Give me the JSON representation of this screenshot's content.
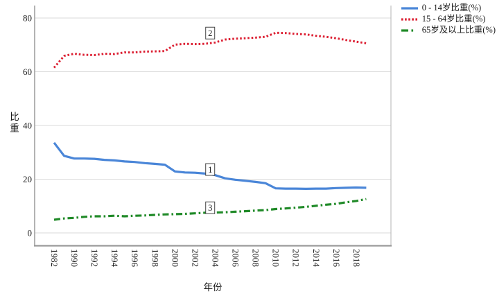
{
  "chart_data": {
    "type": "line",
    "title": "",
    "xlabel": "年份",
    "ylabel": "比重",
    "ylim": [
      0,
      80
    ],
    "grid": "horizontal",
    "legend_position": "top-right",
    "y_tick_labels": [
      "0",
      "20",
      "40",
      "60",
      "80"
    ],
    "y_ticks": [
      0,
      20,
      40,
      60,
      80
    ],
    "x_categories": [
      1982,
      1987,
      1990,
      1991,
      1992,
      1993,
      1994,
      1995,
      1996,
      1997,
      1998,
      1999,
      2000,
      2001,
      2002,
      2003,
      2004,
      2005,
      2006,
      2007,
      2008,
      2009,
      2010,
      2011,
      2012,
      2013,
      2014,
      2015,
      2016,
      2017,
      2018,
      2019
    ],
    "x_tick_labels": [
      "1982",
      "1990",
      "1992",
      "1994",
      "1996",
      "1998",
      "2000",
      "2002",
      "2004",
      "2006",
      "2008",
      "2010",
      "2012",
      "2014",
      "2016",
      "2018"
    ],
    "series": [
      {
        "name": "0 - 14岁比重(%)",
        "marker_label": "1",
        "color": "#4a86d8",
        "style": "solid",
        "values": [
          33.6,
          28.7,
          27.7,
          27.7,
          27.6,
          27.2,
          27.0,
          26.6,
          26.4,
          26.0,
          25.7,
          25.4,
          22.9,
          22.5,
          22.4,
          22.1,
          21.5,
          20.3,
          19.8,
          19.4,
          19.0,
          18.5,
          16.6,
          16.5,
          16.5,
          16.4,
          16.5,
          16.5,
          16.7,
          16.8,
          16.9,
          16.8
        ]
      },
      {
        "name": "15 - 64岁比重(%)",
        "marker_label": "2",
        "color": "#dc2033",
        "style": "dotted",
        "values": [
          61.5,
          65.9,
          66.7,
          66.3,
          66.2,
          66.7,
          66.6,
          67.2,
          67.2,
          67.5,
          67.6,
          67.7,
          70.1,
          70.4,
          70.3,
          70.4,
          70.9,
          72.0,
          72.3,
          72.5,
          72.7,
          73.0,
          74.5,
          74.4,
          74.1,
          73.9,
          73.4,
          73.0,
          72.5,
          71.8,
          71.2,
          70.6
        ]
      },
      {
        "name": "65岁及以上比重(%)",
        "marker_label": "3",
        "color": "#208a28",
        "style": "dash-dot",
        "values": [
          4.9,
          5.4,
          5.6,
          6.0,
          6.2,
          6.2,
          6.4,
          6.2,
          6.4,
          6.5,
          6.7,
          6.9,
          7.0,
          7.1,
          7.3,
          7.5,
          7.6,
          7.7,
          7.9,
          8.1,
          8.3,
          8.5,
          8.9,
          9.1,
          9.4,
          9.7,
          10.1,
          10.5,
          10.8,
          11.4,
          11.9,
          12.6
        ]
      }
    ],
    "colors": {
      "gridline": "#d9d9d9",
      "axis": "#9a9a9a",
      "frame": "#b3b3b3",
      "text": "#1a1a1a",
      "annotation_border": "#444444",
      "annotation_fill": "#ffffff"
    }
  }
}
